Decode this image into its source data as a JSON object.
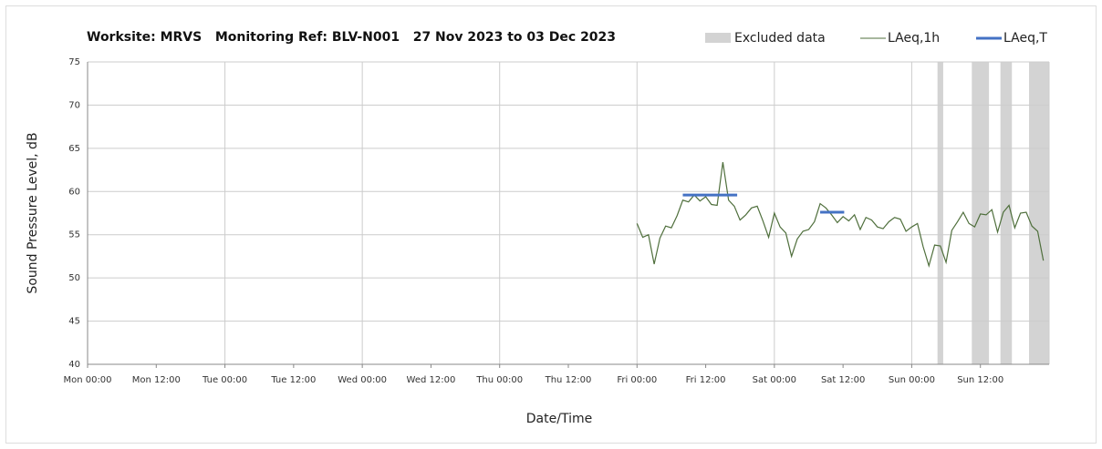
{
  "chart_data": {
    "type": "line",
    "title": "Worksite: MRVS   Monitoring Ref: BLV-N001   27 Nov 2023 to 03 Dec 2023",
    "xlabel": "Date/Time",
    "ylabel": "Sound Pressure Level, dB",
    "xlim": [
      0,
      168
    ],
    "ylim": [
      40,
      75
    ],
    "yticks": [
      40,
      45,
      50,
      55,
      60,
      65,
      70,
      75
    ],
    "xticks": [
      {
        "value": 0,
        "label": "Mon 00:00"
      },
      {
        "value": 12,
        "label": "Mon 12:00"
      },
      {
        "value": 24,
        "label": "Tue 00:00"
      },
      {
        "value": 36,
        "label": "Tue 12:00"
      },
      {
        "value": 48,
        "label": "Wed 00:00"
      },
      {
        "value": 60,
        "label": "Wed 12:00"
      },
      {
        "value": 72,
        "label": "Thu 00:00"
      },
      {
        "value": 84,
        "label": "Thu 12:00"
      },
      {
        "value": 96,
        "label": "Fri 00:00"
      },
      {
        "value": 108,
        "label": "Fri 12:00"
      },
      {
        "value": 120,
        "label": "Sat 00:00"
      },
      {
        "value": 132,
        "label": "Sat 12:00"
      },
      {
        "value": 144,
        "label": "Sun 00:00"
      },
      {
        "value": 156,
        "label": "Sun 12:00"
      }
    ],
    "grid": true,
    "excluded": {
      "name": "Excluded data",
      "color": "#d3d3d3",
      "ranges": [
        [
          148.5,
          149.5
        ],
        [
          154.5,
          157.5
        ],
        [
          159.5,
          161.5
        ],
        [
          164.5,
          168
        ]
      ]
    },
    "series": [
      {
        "name": "LAeq,1h",
        "color": "#4f6f3c",
        "x": [
          96,
          97,
          98,
          99,
          100,
          101,
          102,
          103,
          104,
          105,
          106,
          107,
          108,
          109,
          110,
          111,
          112,
          113,
          114,
          115,
          116,
          117,
          118,
          119,
          120,
          121,
          122,
          123,
          124,
          125,
          126,
          127,
          128,
          129,
          130,
          131,
          132,
          133,
          134,
          135,
          136,
          137,
          138,
          139,
          140,
          141,
          142,
          143,
          144,
          145,
          146,
          147,
          148,
          149,
          150,
          151,
          152,
          153,
          154,
          155,
          156,
          157,
          158,
          159,
          160,
          161,
          162,
          163,
          164,
          165,
          166,
          167
        ],
        "values": [
          56.3,
          54.7,
          55.0,
          51.6,
          54.6,
          56.0,
          55.8,
          57.2,
          59.0,
          58.8,
          59.6,
          58.9,
          59.4,
          58.5,
          58.4,
          63.4,
          59.0,
          58.3,
          56.7,
          57.3,
          58.1,
          58.3,
          56.6,
          54.7,
          57.5,
          55.9,
          55.2,
          52.5,
          54.5,
          55.4,
          55.6,
          56.5,
          58.6,
          58.1,
          57.3,
          56.4,
          57.1,
          56.6,
          57.3,
          55.6,
          57.0,
          56.7,
          55.9,
          55.7,
          56.5,
          57.0,
          56.8,
          55.4,
          55.9,
          56.3,
          53.6,
          51.4,
          53.8,
          53.7,
          51.8,
          55.5,
          56.5,
          57.6,
          56.3,
          55.9,
          57.4,
          57.3,
          57.9,
          55.3,
          57.6,
          58.4,
          55.8,
          57.5,
          57.6,
          56.0,
          55.4,
          52.0
        ]
      },
      {
        "name": "LAeq,T",
        "color": "#4472c4",
        "periods": [
          {
            "x": [
              104,
              113.5
            ],
            "value": 59.6
          },
          {
            "x": [
              128,
              132.2
            ],
            "value": 57.6
          }
        ]
      }
    ]
  }
}
